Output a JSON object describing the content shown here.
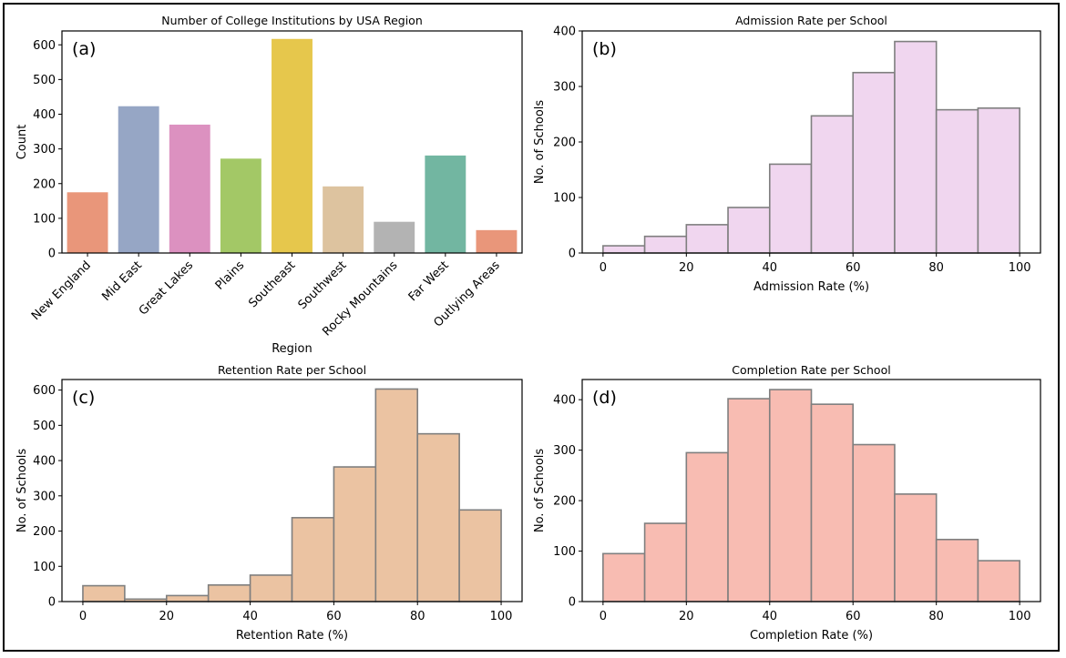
{
  "chart_data": [
    {
      "type": "bar",
      "panel_label": "(a)",
      "title": "Number of College Institutions by USA Region",
      "xlabel": "Region",
      "ylabel": "Count",
      "ylim": [
        0,
        640
      ],
      "yticks": [
        0,
        100,
        200,
        300,
        400,
        500,
        600
      ],
      "categories": [
        "New England",
        "Mid East",
        "Great Lakes",
        "Plains",
        "Southeast",
        "Southwest",
        "Rocky Mountains",
        "Far West",
        "Outlying Areas"
      ],
      "values": [
        175,
        423,
        370,
        272,
        617,
        192,
        90,
        281,
        66
      ],
      "colors": [
        "#e9967a",
        "#96a6c5",
        "#dc91c0",
        "#a3c866",
        "#e6c74c",
        "#ddc39f",
        "#b3b3b3",
        "#72b6a1",
        "#e9967a"
      ],
      "grid": false
    },
    {
      "type": "bar",
      "subtype": "histogram",
      "panel_label": "(b)",
      "title": "Admission Rate per School",
      "xlabel": "Admission Rate (%)",
      "ylabel": "No. of Schools",
      "xlim": [
        -5,
        105
      ],
      "ylim": [
        0,
        400
      ],
      "xticks": [
        0,
        20,
        40,
        60,
        80,
        100
      ],
      "yticks": [
        0,
        100,
        200,
        300,
        400
      ],
      "bin_edges": [
        0,
        10,
        20,
        30,
        40,
        50,
        60,
        70,
        80,
        90,
        100
      ],
      "values": [
        13,
        30,
        51,
        82,
        160,
        247,
        325,
        381,
        258,
        261
      ],
      "color": "#f0d6ef",
      "edge_color": "#7f7f7f",
      "grid": false
    },
    {
      "type": "bar",
      "subtype": "histogram",
      "panel_label": "(c)",
      "title": "Retention Rate per School",
      "xlabel": "Retention Rate (%)",
      "ylabel": "No. of Schools",
      "xlim": [
        -5,
        105
      ],
      "ylim": [
        0,
        630
      ],
      "xticks": [
        0,
        20,
        40,
        60,
        80,
        100
      ],
      "yticks": [
        0,
        100,
        200,
        300,
        400,
        500,
        600
      ],
      "bin_edges": [
        0,
        10,
        20,
        30,
        40,
        50,
        60,
        70,
        80,
        90,
        100
      ],
      "values": [
        45,
        7,
        17,
        47,
        75,
        238,
        382,
        603,
        476,
        260
      ],
      "color": "#ebc3a2",
      "edge_color": "#7f7f7f",
      "grid": false
    },
    {
      "type": "bar",
      "subtype": "histogram",
      "panel_label": "(d)",
      "title": "Completion Rate per School",
      "xlabel": "Completion Rate (%)",
      "ylabel": "No. of Schools",
      "xlim": [
        -5,
        105
      ],
      "ylim": [
        0,
        440
      ],
      "xticks": [
        0,
        20,
        40,
        60,
        80,
        100
      ],
      "yticks": [
        0,
        100,
        200,
        300,
        400
      ],
      "bin_edges": [
        0,
        10,
        20,
        30,
        40,
        50,
        60,
        70,
        80,
        90,
        100
      ],
      "values": [
        95,
        155,
        295,
        402,
        420,
        391,
        311,
        213,
        123,
        81
      ],
      "color": "#f8bcb2",
      "edge_color": "#7f7f7f",
      "grid": false
    }
  ]
}
